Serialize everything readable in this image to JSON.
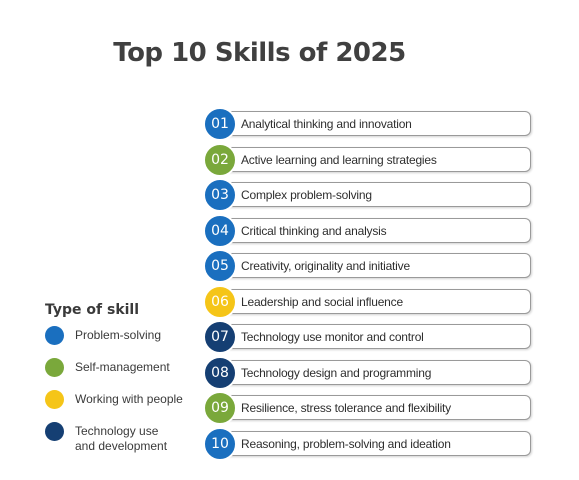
{
  "title": "Top 10 Skills of 2025",
  "legend": {
    "title": "Type of skill",
    "items": [
      {
        "label": "Problem-solving",
        "color": "#1a6fbf"
      },
      {
        "label": "Self-management",
        "color": "#7aa83b"
      },
      {
        "label": "Working with people",
        "color": "#f5c518"
      },
      {
        "label": "Technology use",
        "label_line2": "and development",
        "color": "#153f73"
      }
    ]
  },
  "skills": [
    {
      "number": "01",
      "label": "Analytical thinking and innovation",
      "category": "Problem-solving",
      "color": "#1a6fbf"
    },
    {
      "number": "02",
      "label": "Active learning and learning strategies",
      "category": "Self-management",
      "color": "#7aa83b"
    },
    {
      "number": "03",
      "label": "Complex problem-solving",
      "category": "Problem-solving",
      "color": "#1a6fbf"
    },
    {
      "number": "04",
      "label": "Critical thinking and analysis",
      "category": "Problem-solving",
      "color": "#1a6fbf"
    },
    {
      "number": "05",
      "label": "Creativity, originality and initiative",
      "category": "Problem-solving",
      "color": "#1a6fbf"
    },
    {
      "number": "06",
      "label": "Leadership and social influence",
      "category": "Working with people",
      "color": "#f5c518"
    },
    {
      "number": "07",
      "label": "Technology use monitor and control",
      "category": "Technology use and development",
      "color": "#153f73"
    },
    {
      "number": "08",
      "label": "Technology design and programming",
      "category": "Technology use and development",
      "color": "#153f73"
    },
    {
      "number": "09",
      "label": "Resilience, stress tolerance and flexibility",
      "category": "Self-management",
      "color": "#7aa83b"
    },
    {
      "number": "10",
      "label": "Reasoning, problem-solving and ideation",
      "category": "Problem-solving",
      "color": "#1a6fbf"
    }
  ]
}
